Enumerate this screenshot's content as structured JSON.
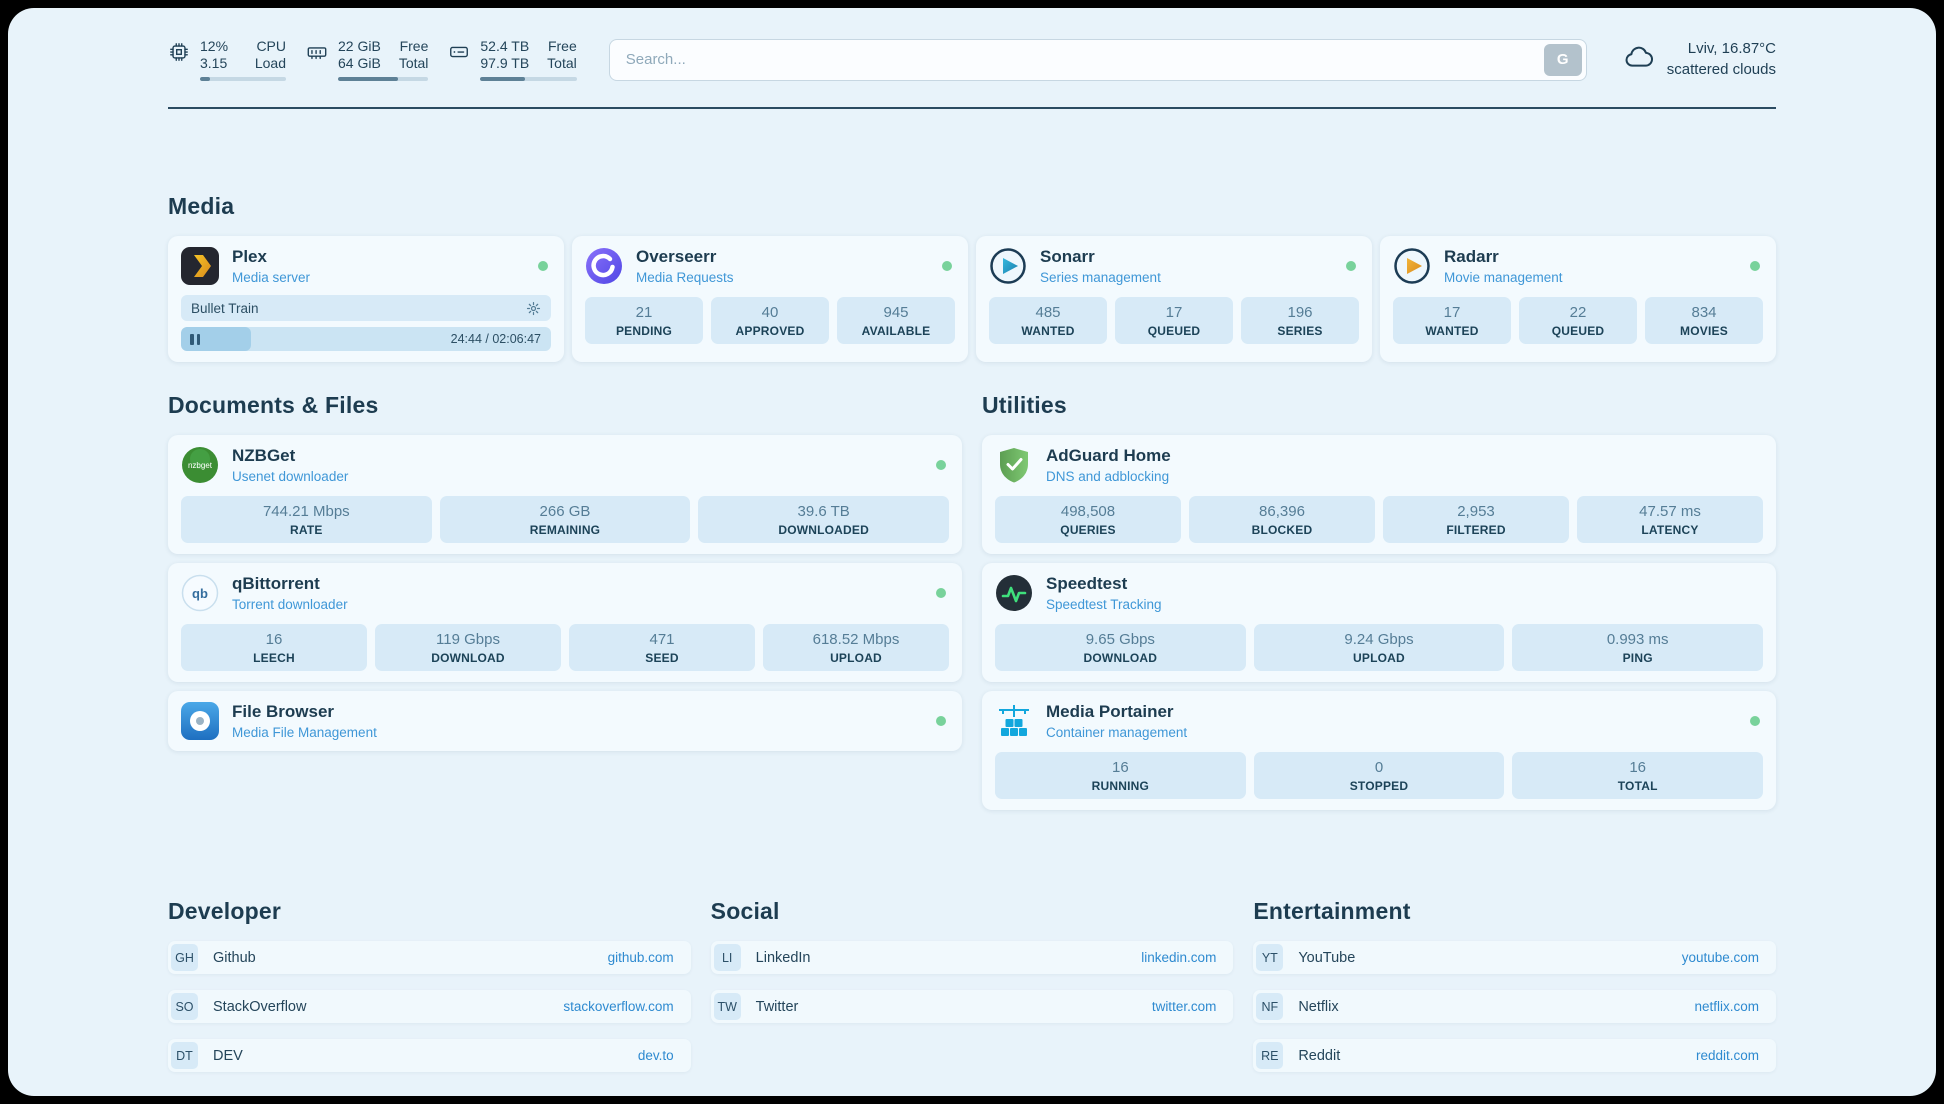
{
  "header": {
    "cpu": {
      "values": [
        "12%",
        "3.15"
      ],
      "labels": [
        "CPU",
        "Load"
      ],
      "progress": 12
    },
    "ram": {
      "values": [
        "22 GiB",
        "64 GiB"
      ],
      "labels": [
        "Free",
        "Total"
      ],
      "progress": 66
    },
    "disk": {
      "values": [
        "52.4 TB",
        "97.9 TB"
      ],
      "labels": [
        "Free",
        "Total"
      ],
      "progress": 46
    },
    "search": {
      "placeholder": "Search...",
      "button_label": "G"
    },
    "weather": {
      "location": "Lviv, 16.87°C",
      "condition": "scattered clouds"
    }
  },
  "sections": {
    "media": {
      "title": "Media",
      "plex": {
        "name": "Plex",
        "subtitle": "Media server",
        "now_playing": {
          "title": "Bullet Train",
          "time": "24:44 / 02:06:47",
          "progress": 19
        }
      },
      "overseerr": {
        "name": "Overseerr",
        "subtitle": "Media Requests",
        "stats": [
          {
            "value": "21",
            "label": "PENDING"
          },
          {
            "value": "40",
            "label": "APPROVED"
          },
          {
            "value": "945",
            "label": "AVAILABLE"
          }
        ]
      },
      "sonarr": {
        "name": "Sonarr",
        "subtitle": "Series management",
        "stats": [
          {
            "value": "485",
            "label": "WANTED"
          },
          {
            "value": "17",
            "label": "QUEUED"
          },
          {
            "value": "196",
            "label": "SERIES"
          }
        ]
      },
      "radarr": {
        "name": "Radarr",
        "subtitle": "Movie management",
        "stats": [
          {
            "value": "17",
            "label": "WANTED"
          },
          {
            "value": "22",
            "label": "QUEUED"
          },
          {
            "value": "834",
            "label": "MOVIES"
          }
        ]
      }
    },
    "documents": {
      "title": "Documents & Files",
      "nzbget": {
        "name": "NZBGet",
        "subtitle": "Usenet downloader",
        "stats": [
          {
            "value": "744.21 Mbps",
            "label": "RATE"
          },
          {
            "value": "266 GB",
            "label": "REMAINING"
          },
          {
            "value": "39.6 TB",
            "label": "DOWNLOADED"
          }
        ]
      },
      "qbittorrent": {
        "name": "qBittorrent",
        "subtitle": "Torrent downloader",
        "stats": [
          {
            "value": "16",
            "label": "LEECH"
          },
          {
            "value": "119 Gbps",
            "label": "DOWNLOAD"
          },
          {
            "value": "471",
            "label": "SEED"
          },
          {
            "value": "618.52 Mbps",
            "label": "UPLOAD"
          }
        ]
      },
      "filebrowser": {
        "name": "File Browser",
        "subtitle": "Media File Management"
      }
    },
    "utilities": {
      "title": "Utilities",
      "adguard": {
        "name": "AdGuard Home",
        "subtitle": "DNS and adblocking",
        "stats": [
          {
            "value": "498,508",
            "label": "QUERIES"
          },
          {
            "value": "86,396",
            "label": "BLOCKED"
          },
          {
            "value": "2,953",
            "label": "FILTERED"
          },
          {
            "value": "47.57 ms",
            "label": "LATENCY"
          }
        ]
      },
      "speedtest": {
        "name": "Speedtest",
        "subtitle": "Speedtest Tracking",
        "stats": [
          {
            "value": "9.65 Gbps",
            "label": "DOWNLOAD"
          },
          {
            "value": "9.24 Gbps",
            "label": "UPLOAD"
          },
          {
            "value": "0.993 ms",
            "label": "PING"
          }
        ]
      },
      "portainer": {
        "name": "Media Portainer",
        "subtitle": "Container management",
        "stats": [
          {
            "value": "16",
            "label": "RUNNING"
          },
          {
            "value": "0",
            "label": "STOPPED"
          },
          {
            "value": "16",
            "label": "TOTAL"
          }
        ]
      }
    },
    "bookmarks": [
      {
        "title": "Developer",
        "links": [
          {
            "abbr": "GH",
            "name": "Github",
            "url": "github.com"
          },
          {
            "abbr": "SO",
            "name": "StackOverflow",
            "url": "stackoverflow.com"
          },
          {
            "abbr": "DT",
            "name": "DEV",
            "url": "dev.to"
          }
        ]
      },
      {
        "title": "Social",
        "links": [
          {
            "abbr": "LI",
            "name": "LinkedIn",
            "url": "linkedin.com"
          },
          {
            "abbr": "TW",
            "name": "Twitter",
            "url": "twitter.com"
          }
        ]
      },
      {
        "title": "Entertainment",
        "links": [
          {
            "abbr": "YT",
            "name": "YouTube",
            "url": "youtube.com"
          },
          {
            "abbr": "NF",
            "name": "Netflix",
            "url": "netflix.com"
          },
          {
            "abbr": "RE",
            "name": "Reddit",
            "url": "reddit.com"
          }
        ]
      }
    ]
  },
  "colors": {
    "accent_blue": "#2e8ad0",
    "status_green": "#78d29b",
    "page_bg": "#e8f3fa"
  }
}
